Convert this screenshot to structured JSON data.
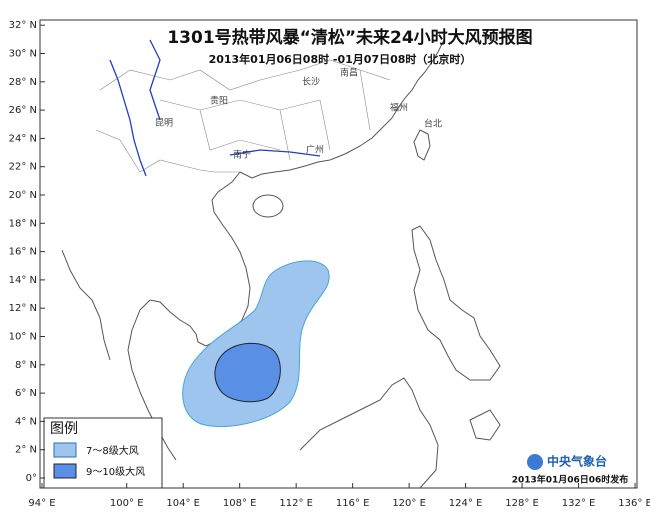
{
  "title": "1301号热带风暴“清松”未来24小时大风预报图",
  "subtitle": "2013年01月06日08时 -01月07日08时（北京时）",
  "lat_ticks": [
    {
      "value": 32,
      "label": "32° N"
    },
    {
      "value": 30,
      "label": "30° N"
    },
    {
      "value": 28,
      "label": "28° N"
    },
    {
      "value": 26,
      "label": "26° N"
    },
    {
      "value": 24,
      "label": "24° N"
    },
    {
      "value": 22,
      "label": "22° N"
    },
    {
      "value": 20,
      "label": "20° N"
    },
    {
      "value": 18,
      "label": "18° N"
    },
    {
      "value": 16,
      "label": "16° N"
    },
    {
      "value": 14,
      "label": "14° N"
    },
    {
      "value": 12,
      "label": "12° N"
    },
    {
      "value": 10,
      "label": "10° N"
    },
    {
      "value": 8,
      "label": "8° N"
    },
    {
      "value": 6,
      "label": "6° N"
    },
    {
      "value": 4,
      "label": "4° N"
    },
    {
      "value": 2,
      "label": "2° N"
    },
    {
      "value": 0,
      "label": "0°"
    }
  ],
  "lon_ticks": [
    {
      "value": 94,
      "label": "94° E"
    },
    {
      "value": 100,
      "label": "100° E"
    },
    {
      "value": 104,
      "label": "104° E"
    },
    {
      "value": 108,
      "label": "108° E"
    },
    {
      "value": 112,
      "label": "112° E"
    },
    {
      "value": 116,
      "label": "116° E"
    },
    {
      "value": 120,
      "label": "120° E"
    },
    {
      "value": 124,
      "label": "124° E"
    },
    {
      "value": 128,
      "label": "128° E"
    },
    {
      "value": 132,
      "label": "132° E"
    },
    {
      "value": 136,
      "label": "136° E"
    }
  ],
  "cities": [
    "昆明",
    "贵阳",
    "长沙",
    "南昌",
    "南宁",
    "广州",
    "福州",
    "台北"
  ],
  "legend": {
    "title": "图例",
    "items": [
      {
        "label": "7～8级大风",
        "color": "#9ec5ee"
      },
      {
        "label": "9～10级大风",
        "color": "#5a8fe6"
      }
    ]
  },
  "publisher": "中央气象台",
  "issued": "2013年01月06日06时发布"
}
